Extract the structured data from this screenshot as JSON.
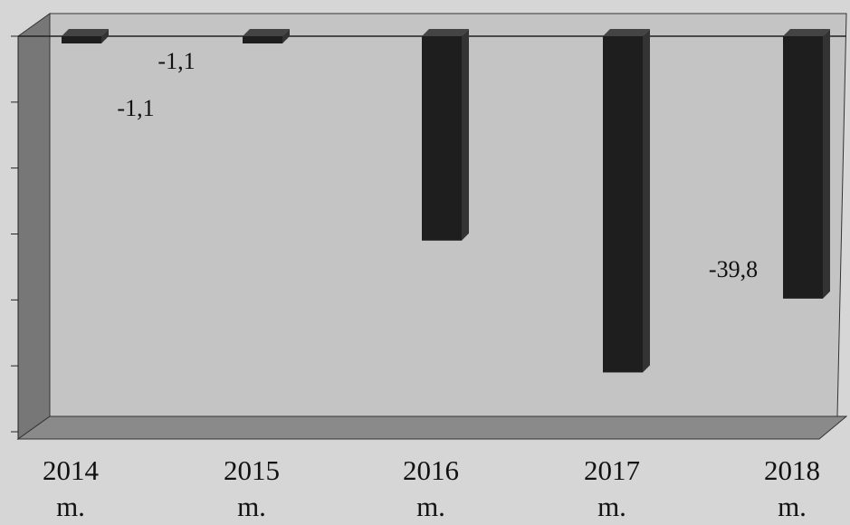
{
  "chart_data": {
    "type": "bar",
    "categories": [
      "2014 m.",
      "2015 m.",
      "2016 m.",
      "2017 m.",
      "2018 m."
    ],
    "values": [
      -1.1,
      -1.1,
      -31,
      -51,
      -39.8
    ],
    "value_labels": [
      "-1,1",
      "-1,1",
      null,
      null,
      "-39,8"
    ],
    "color": "#1e1e1e",
    "ylim": [
      -60,
      0
    ],
    "yticks": [
      -60,
      -50,
      -40,
      -30,
      -20,
      -10,
      0
    ]
  }
}
